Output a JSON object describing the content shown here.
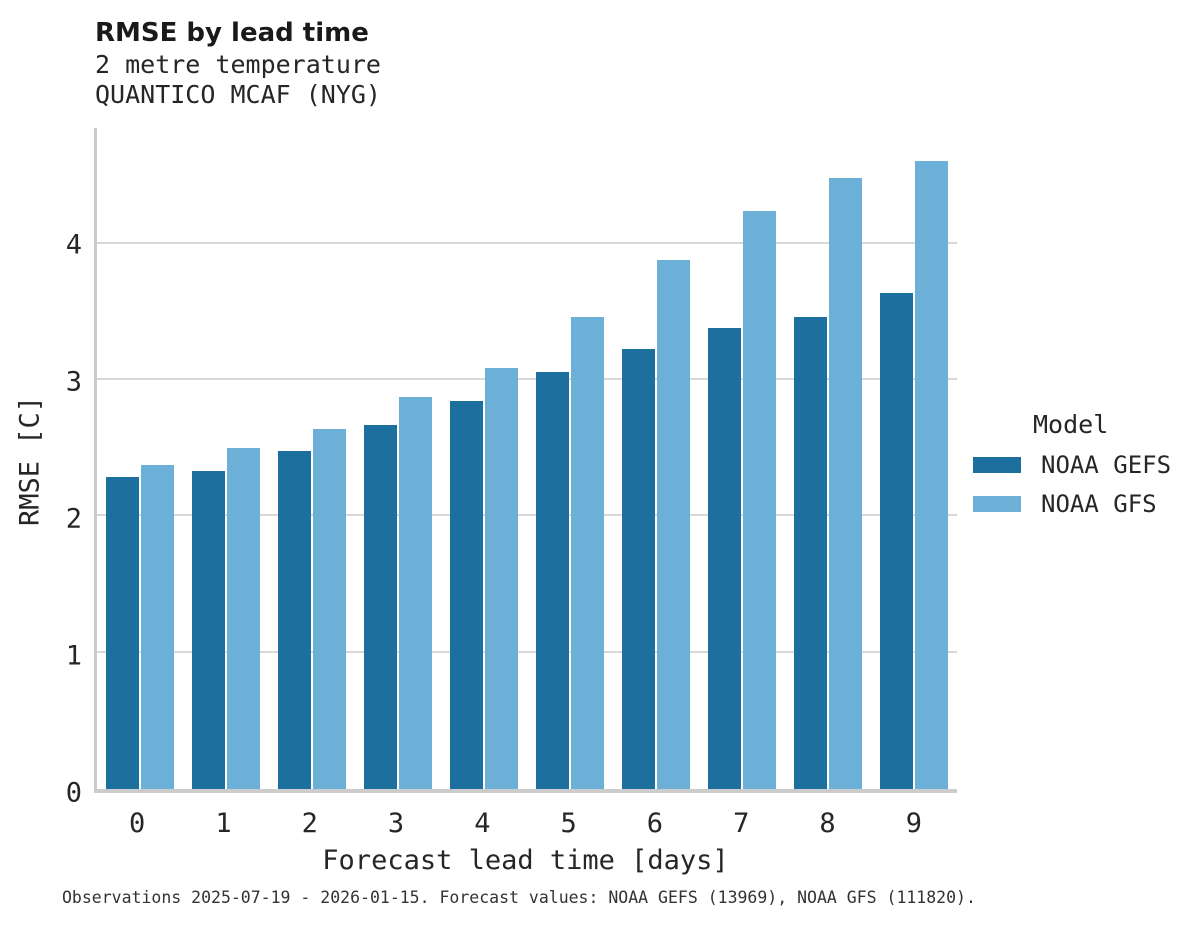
{
  "header": {
    "title": "RMSE by lead time",
    "subtitle_line1": "2 metre temperature",
    "subtitle_line2": "QUANTICO MCAF (NYG)"
  },
  "legend": {
    "title": "Model",
    "items": [
      {
        "label": "NOAA GEFS",
        "color": "#1d6f9e"
      },
      {
        "label": "NOAA GFS",
        "color": "#6cb0d8"
      }
    ]
  },
  "footer": {
    "text": "Observations 2025-07-19 - 2026-01-15. Forecast values: NOAA GEFS (13969), NOAA GFS (111820)."
  },
  "colors": {
    "noaa_gefs": "#1d6f9e",
    "noaa_gfs": "#6cb0d8",
    "gridline": "#d9d9d9",
    "axis_line": "#cccccc",
    "text": "#262626"
  },
  "chart_data": {
    "type": "bar",
    "title": "RMSE by lead time",
    "subtitle": [
      "2 metre temperature",
      "QUANTICO MCAF (NYG)"
    ],
    "xlabel": "Forecast lead time [days]",
    "ylabel": "RMSE [C]",
    "categories": [
      "0",
      "1",
      "2",
      "3",
      "4",
      "5",
      "6",
      "7",
      "8",
      "9"
    ],
    "series": [
      {
        "name": "NOAA GEFS",
        "color": "#1d6f9e",
        "values": [
          2.29,
          2.33,
          2.48,
          2.67,
          2.85,
          3.06,
          3.23,
          3.38,
          3.46,
          3.64
        ]
      },
      {
        "name": "NOAA GFS",
        "color": "#6cb0d8",
        "values": [
          2.38,
          2.5,
          2.64,
          2.88,
          3.09,
          3.46,
          3.88,
          4.24,
          4.48,
          4.61
        ]
      }
    ],
    "yticks": [
      0,
      1,
      2,
      3,
      4
    ],
    "ylim": [
      0,
      4.85
    ],
    "grid": "horizontal",
    "legend_position": "right",
    "legend_title": "Model"
  }
}
